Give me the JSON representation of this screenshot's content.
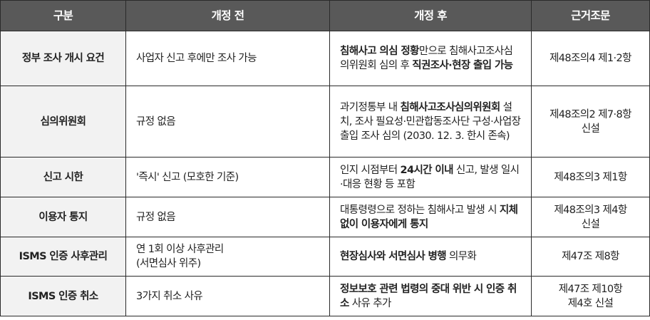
{
  "headers": [
    "구분",
    "개정 전",
    "개정 후",
    "근거조문"
  ],
  "rows": [
    {
      "category": "정부 조사 개시 요건",
      "before": [
        "사업자 신고 후에만 조사 가능"
      ],
      "after": [
        {
          "t": "침해사고 의심 정황",
          "b": true
        },
        {
          "t": "만으로 침해사고조사심의위원회 심의 후 ",
          "b": false
        },
        {
          "t": "직권조사·현장 출입 가능",
          "b": true
        }
      ],
      "basis": [
        "제48조의4 제1·2항"
      ]
    },
    {
      "category": "심의위원회",
      "before": [
        "규정 없음"
      ],
      "after": [
        {
          "t": "과기정통부 내 ",
          "b": false
        },
        {
          "t": "침해사고조사심의위원회",
          "b": true
        },
        {
          "t": " 설치, 조사 필요성·민관합동조사단 구성·사업장 출입 조사 심의 (2030. 12. 3. 한시 존속)",
          "b": false
        }
      ],
      "basis": [
        "제48조의2 제7·8항",
        "신설"
      ]
    },
    {
      "category": "신고 시한",
      "before": [
        "'즉시' 신고 (모호한 기준)"
      ],
      "after": [
        {
          "t": "인지 시점부터 ",
          "b": false
        },
        {
          "t": "24시간 이내",
          "b": true
        },
        {
          "t": " 신고, 발생 일시·대응 현황 등 포함",
          "b": false
        }
      ],
      "basis": [
        "제48조의3 제1항"
      ]
    },
    {
      "category": "이용자 통지",
      "before": [
        "규정 없음"
      ],
      "after": [
        {
          "t": "대통령령으로 정하는 침해사고 발생 시 ",
          "b": false
        },
        {
          "t": "지체 없이 이용자에게 통지",
          "b": true
        }
      ],
      "basis": [
        "제48조의3 제4항",
        "신설"
      ]
    },
    {
      "category": "ISMS 인증 사후관리",
      "before": [
        "연 1회 이상 사후관리",
        "(서면심사 위주)"
      ],
      "after": [
        {
          "t": "현장심사와 서면심사 병행",
          "b": true
        },
        {
          "t": " 의무화",
          "b": false
        }
      ],
      "basis": [
        "제47조 제8항"
      ]
    },
    {
      "category": "ISMS 인증 취소",
      "before": [
        "3가지 취소 사유"
      ],
      "after": [
        {
          "t": "정보보호 관련 법령의 중대 위반 시 인증 취소",
          "b": true
        },
        {
          "t": " 사유 추가",
          "b": false
        }
      ],
      "basis": [
        "제47조 제10항",
        "제4호 신설"
      ]
    }
  ],
  "colors": {
    "header_bg": "#595959",
    "category_bg": "#f2f2f2",
    "border": "#2a2a2a"
  }
}
